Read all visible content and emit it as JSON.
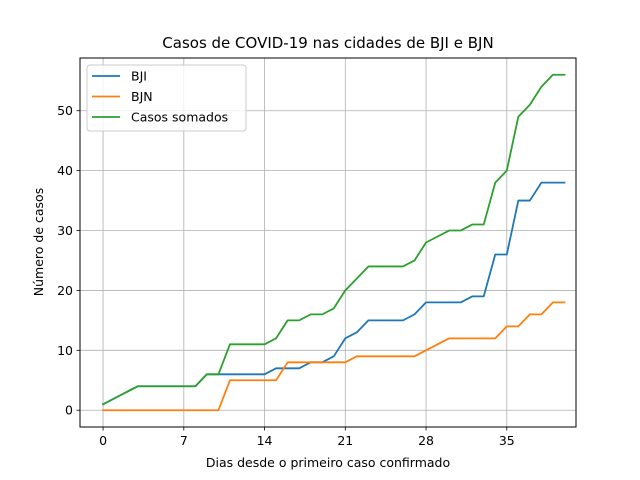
{
  "chart_data": {
    "type": "line",
    "title": "Casos de COVID-19 nas cidades de BJI e BJN",
    "xlabel": "Dias desde o primeiro caso confirmado",
    "ylabel": "Número de casos",
    "xlim": [
      -2,
      41
    ],
    "ylim": [
      -2.8,
      58.8
    ],
    "xticks": [
      0,
      7,
      14,
      21,
      28,
      35
    ],
    "yticks": [
      0,
      10,
      20,
      30,
      40,
      50
    ],
    "grid": true,
    "legend_position": "upper-left",
    "x": [
      0,
      1,
      2,
      3,
      4,
      5,
      6,
      7,
      8,
      9,
      10,
      11,
      12,
      13,
      14,
      15,
      16,
      17,
      18,
      19,
      20,
      21,
      22,
      23,
      24,
      25,
      26,
      27,
      28,
      29,
      30,
      31,
      32,
      33,
      34,
      35,
      36,
      37,
      38,
      39,
      40
    ],
    "series": [
      {
        "name": "BJI",
        "color": "#1f77b4",
        "values": [
          1,
          2,
          3,
          4,
          4,
          4,
          4,
          4,
          4,
          6,
          6,
          6,
          6,
          6,
          6,
          7,
          7,
          7,
          8,
          8,
          9,
          12,
          13,
          15,
          15,
          15,
          15,
          16,
          18,
          18,
          18,
          18,
          19,
          19,
          26,
          26,
          35,
          35,
          38,
          38,
          38
        ]
      },
      {
        "name": "BJN",
        "color": "#ff7f0e",
        "values": [
          0,
          0,
          0,
          0,
          0,
          0,
          0,
          0,
          0,
          0,
          0,
          5,
          5,
          5,
          5,
          5,
          8,
          8,
          8,
          8,
          8,
          8,
          9,
          9,
          9,
          9,
          9,
          9,
          10,
          11,
          12,
          12,
          12,
          12,
          12,
          14,
          14,
          16,
          16,
          18,
          18
        ]
      },
      {
        "name": "Casos somados",
        "color": "#2ca02c",
        "values": [
          1,
          2,
          3,
          4,
          4,
          4,
          4,
          4,
          4,
          6,
          6,
          11,
          11,
          11,
          11,
          12,
          15,
          15,
          16,
          16,
          17,
          20,
          22,
          24,
          24,
          24,
          24,
          25,
          28,
          29,
          30,
          30,
          31,
          31,
          38,
          40,
          49,
          51,
          54,
          56,
          56
        ]
      }
    ]
  }
}
